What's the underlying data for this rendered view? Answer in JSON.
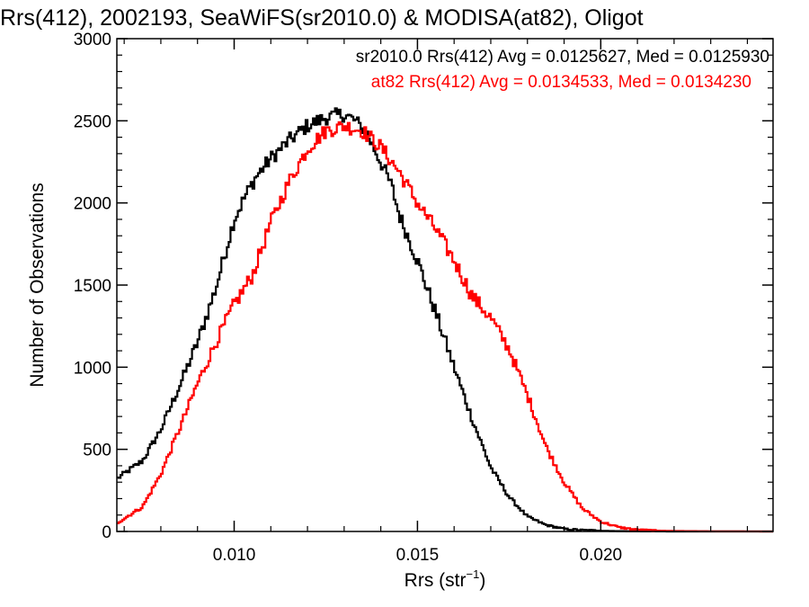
{
  "chart_data": {
    "type": "line",
    "title": "Rrs(412), 2002193, SeaWiFS(sr2010.0) & MODISA(at82), Oligot",
    "xlabel_main": "Rrs (str",
    "xlabel_sup": "−1",
    "xlabel_close": ")",
    "ylabel": "Number of Observations",
    "xlim": [
      0.0068,
      0.0247
    ],
    "ylim": [
      0,
      3000
    ],
    "xticks": [
      0.01,
      0.015,
      0.02
    ],
    "xtick_labels": [
      "0.010",
      "0.015",
      "0.020"
    ],
    "yticks": [
      0,
      500,
      1000,
      1500,
      2000,
      2500,
      3000
    ],
    "ytick_labels": [
      "0",
      "500",
      "1000",
      "1500",
      "2000",
      "2500",
      "3000"
    ],
    "grid": false,
    "legend_placement": "top-right",
    "series": [
      {
        "name": "sr2010.0 Rrs(412) Avg = 0.0125627, Med = 0.0125930",
        "color": "#000000",
        "x": [
          0.0068,
          0.0075,
          0.008,
          0.0085,
          0.009,
          0.0095,
          0.01,
          0.0103,
          0.0106,
          0.011,
          0.0115,
          0.012,
          0.0125,
          0.013,
          0.0133,
          0.0136,
          0.014,
          0.0143,
          0.0145,
          0.015,
          0.0155,
          0.016,
          0.0165,
          0.017,
          0.0175,
          0.018,
          0.0185,
          0.019,
          0.0195,
          0.02,
          0.0205,
          0.021,
          0.022,
          0.023,
          0.0247
        ],
        "y": [
          320,
          430,
          620,
          880,
          1150,
          1480,
          1900,
          2040,
          2160,
          2270,
          2380,
          2470,
          2520,
          2540,
          2500,
          2430,
          2250,
          2100,
          1930,
          1650,
          1330,
          1000,
          680,
          390,
          210,
          90,
          40,
          15,
          8,
          4,
          2,
          1,
          0,
          0,
          0
        ]
      },
      {
        "name": "at82 Rrs(412) Avg = 0.0134533, Med = 0.0134230",
        "color": "#ff0000",
        "x": [
          0.0068,
          0.0075,
          0.008,
          0.0085,
          0.009,
          0.0095,
          0.01,
          0.0105,
          0.011,
          0.0115,
          0.012,
          0.0125,
          0.013,
          0.0135,
          0.014,
          0.0145,
          0.015,
          0.0155,
          0.016,
          0.0165,
          0.017,
          0.0175,
          0.018,
          0.0185,
          0.019,
          0.0195,
          0.02,
          0.0205,
          0.021,
          0.0215,
          0.022,
          0.023,
          0.0247
        ],
        "y": [
          50,
          150,
          350,
          620,
          900,
          1150,
          1380,
          1560,
          1880,
          2130,
          2330,
          2440,
          2470,
          2440,
          2340,
          2190,
          2000,
          1840,
          1650,
          1430,
          1300,
          1110,
          830,
          520,
          300,
          140,
          60,
          25,
          10,
          5,
          3,
          1,
          0
        ]
      }
    ]
  }
}
